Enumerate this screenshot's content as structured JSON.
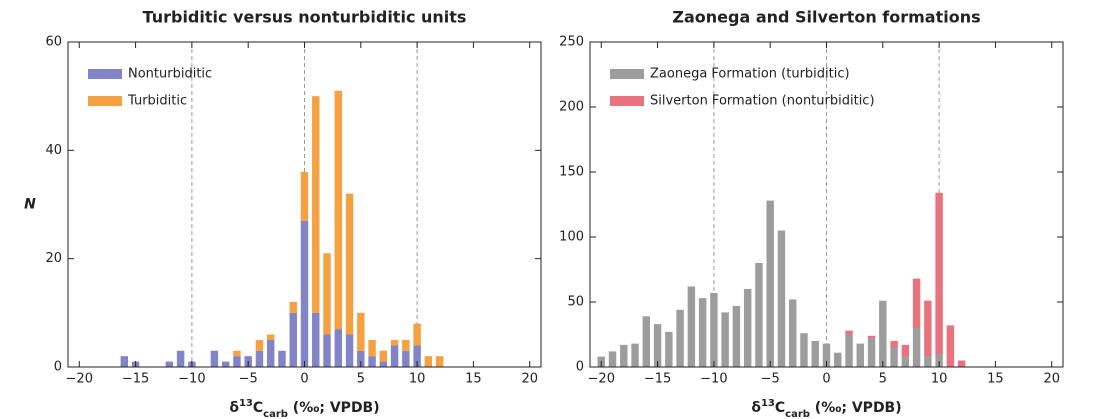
{
  "chart_data": [
    {
      "type": "stacked-histogram",
      "title": "Turbiditic versus nonturbiditic units",
      "xlabel": {
        "prefix": "δ",
        "sup": "13",
        "base": "C",
        "sub": "carb",
        "suffix": " (‰; VPDB)"
      },
      "ylabel": "N",
      "x": [
        -16,
        -15,
        -14,
        -13,
        -12,
        -11,
        -10,
        -9,
        -8,
        -7,
        -6,
        -5,
        -4,
        -3,
        -2,
        -1,
        0,
        1,
        2,
        3,
        4,
        5,
        6,
        7,
        8,
        9,
        10,
        11,
        12
      ],
      "series": [
        {
          "name": "Nonturbiditic",
          "color": "#8184c6",
          "values": [
            2,
            1,
            0,
            0,
            1,
            3,
            1,
            0,
            3,
            1,
            2,
            2,
            3,
            5,
            3,
            10,
            27,
            10,
            6,
            7,
            6,
            3,
            2,
            1,
            4,
            3,
            4,
            0,
            0
          ]
        },
        {
          "name": "Turbiditic",
          "color": "#f5a142",
          "values": [
            0,
            0,
            0,
            0,
            0,
            0,
            0,
            0,
            0,
            0,
            1,
            0,
            2,
            1,
            0,
            2,
            9,
            40,
            15,
            44,
            26,
            7,
            3,
            2,
            1,
            2,
            4,
            2,
            2
          ]
        }
      ],
      "xlim": [
        -21,
        21
      ],
      "xticks": [
        {
          "value": -20,
          "label": "−20"
        },
        {
          "value": -15,
          "label": "−15"
        },
        {
          "value": -10,
          "label": "−10"
        },
        {
          "value": -5,
          "label": "−5"
        },
        0,
        5,
        10,
        15,
        20
      ],
      "ylim": [
        0,
        60
      ],
      "yticks": [
        0,
        20,
        40,
        60
      ],
      "reference_lines": [
        -10,
        0,
        10
      ],
      "legend": "upper-left"
    },
    {
      "type": "stacked-histogram",
      "title": "Zaonega and Silverton formations",
      "xlabel": {
        "prefix": "δ",
        "sup": "13",
        "base": "C",
        "sub": "carb",
        "suffix": " (‰; VPDB)"
      },
      "x": [
        -20,
        -19,
        -18,
        -17,
        -16,
        -15,
        -14,
        -13,
        -12,
        -11,
        -10,
        -9,
        -8,
        -7,
        -6,
        -5,
        -4,
        -3,
        -2,
        -1,
        0,
        1,
        2,
        3,
        4,
        5,
        6,
        7,
        8,
        9,
        10,
        11,
        12
      ],
      "series": [
        {
          "name": "Zaonega Formation (turbiditic)",
          "color": "#9d9d9d",
          "values": [
            8,
            12,
            17,
            18,
            39,
            33,
            27,
            44,
            62,
            53,
            57,
            42,
            47,
            60,
            80,
            128,
            105,
            52,
            26,
            20,
            18,
            11,
            25,
            18,
            22,
            51,
            15,
            8,
            30,
            8,
            10,
            0,
            0
          ]
        },
        {
          "name": "Silverton Formation (nonturbiditic)",
          "color": "#e9737c",
          "values": [
            0,
            0,
            0,
            0,
            0,
            0,
            0,
            0,
            0,
            0,
            0,
            0,
            0,
            0,
            0,
            0,
            0,
            0,
            0,
            0,
            0,
            0,
            3,
            0,
            2,
            0,
            5,
            9,
            38,
            43,
            124,
            32,
            5
          ]
        }
      ],
      "xlim": [
        -21,
        21
      ],
      "xticks": [
        {
          "value": -20,
          "label": "−20"
        },
        {
          "value": -15,
          "label": "−15"
        },
        {
          "value": -10,
          "label": "−10"
        },
        {
          "value": -5,
          "label": "−5"
        },
        0,
        5,
        10,
        15,
        20
      ],
      "ylim": [
        0,
        250
      ],
      "yticks": [
        0,
        50,
        100,
        150,
        200,
        250
      ],
      "reference_lines": [
        -10,
        0,
        10
      ],
      "legend": "upper-left"
    }
  ]
}
